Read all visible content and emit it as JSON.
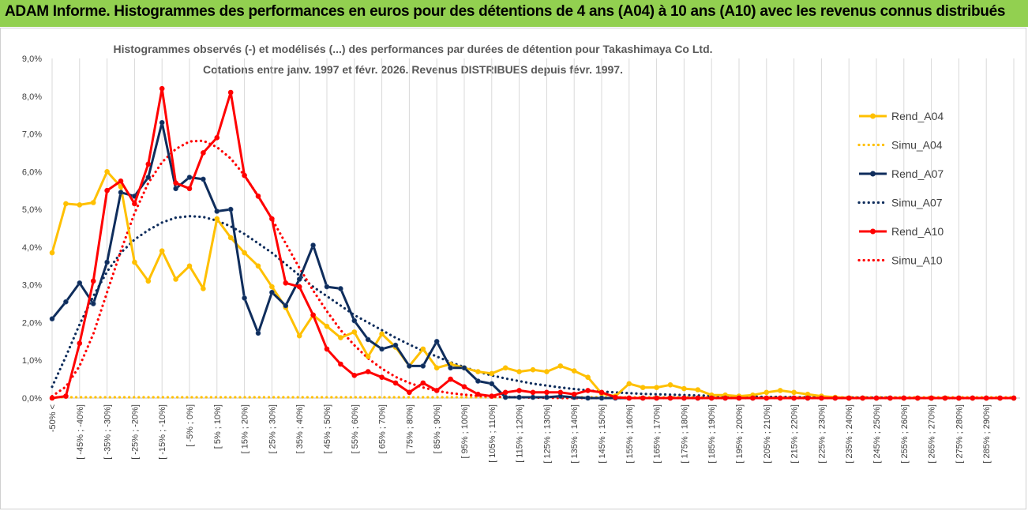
{
  "header": {
    "title": "ADAM Informe. Histogrammes des performances en euros pour des détentions de 4 ans (A04) à 10 ans (A10) avec les revenus connus distribués"
  },
  "chart_data": {
    "type": "line",
    "title": "Histogrammes observés (-) et modélisés (...) des performances par durées de détention pour Takashimaya Co Ltd.",
    "subtitle": "Cotations entre janv. 1997 et févr. 2026. Revenus DISTRIBUES depuis févr. 1997.",
    "xlabel": "",
    "ylabel": "",
    "ylim": [
      0,
      9
    ],
    "yticks": [
      "0,0%",
      "1,0%",
      "2,0%",
      "3,0%",
      "4,0%",
      "5,0%",
      "6,0%",
      "7,0%",
      "8,0%",
      "9,0%"
    ],
    "grid": "vertical",
    "legend_position": "right",
    "categories": [
      "-50% <",
      "] -50% ; -45%]",
      "[ -45% ; -40%]",
      "] -40% ; -35%]",
      "[ -35% ; -30%]",
      "] -30% ; -25%]",
      "[ -25% ; -20%]",
      "] -20% ; -15%]",
      "[ -15% ; -10%]",
      "] -10% ; -5%]",
      "[ -5% ; 0%]",
      "] 0% ; 5%]",
      "[ 5% ; 10%]",
      "] 10% ; 15%]",
      "[ 15% ; 20%]",
      "] 20% ; 25%]",
      "[ 25% ; 30%]",
      "] 30% ; 35%]",
      "[ 35% ; 40%]",
      "] 40% ; 45%]",
      "[ 45% ; 50%]",
      "] 50% ; 55%]",
      "[ 55% ; 60%]",
      "] 60% ; 65%]",
      "[ 65% ; 70%]",
      "] 70% ; 75%]",
      "[ 75% ; 80%]",
      "] 80% ; 85%]",
      "[ 85% ; 90%]",
      "] 90% ; 95%]",
      "[ 95% ; 100%]",
      "] 100% ; 105%]",
      "[ 105% ; 110%]",
      "] 110% ; 115%]",
      "[ 115% ; 120%]",
      "] 120% ; 125%]",
      "[ 125% ; 130%]",
      "] 130% ; 135%]",
      "[ 135% ; 140%]",
      "] 140% ; 145%]",
      "[ 145% ; 150%]",
      "] 150% ; 155%]",
      "[ 155% ; 160%]",
      "] 160% ; 165%]",
      "[ 165% ; 170%]",
      "] 170% ; 175%]",
      "[ 175% ; 180%]",
      "] 180% ; 185%]",
      "[ 185% ; 190%]",
      "] 190% ; 195%]",
      "[ 195% ; 200%]",
      "] 200% ; 205%]",
      "[ 205% ; 210%]",
      "] 210% ; 215%]",
      "[ 215% ; 220%]",
      "] 220% ; 225%]",
      "[ 225% ; 230%]",
      "] 230% ; 235%]",
      "[ 235% ; 240%]",
      "] 240% ; 245%]",
      "[ 245% ; 250%]",
      "] 250% ; 255%]",
      "[ 255% ; 260%]",
      "] 260% ; 265%]",
      "[ 265% ; 270%]",
      "] 270% ; 275%]",
      "[ 275% ; 280%]",
      "] 280% ; 285%]",
      "[ 285% ; 290%]",
      "] 290% ; 295%]",
      "[ 295% ; 300%]"
    ],
    "visible_tick_labels": [
      "-50% <",
      "[ -45% ; -40%]",
      "[ -35% ; -30%]",
      "[ -25% ; -20%]",
      "[ -15% ; -10%]",
      "[ -5% ; 0%]",
      "[ 5% ; 10%]",
      "[ 15% ; 20%]",
      "[ 25% ; 30%]",
      "[ 35% ; 40%]",
      "[ 45% ; 50%]",
      "[ 55% ; 60%]",
      "[ 65% ; 70%]",
      "[ 75% ; 80%]",
      "[ 85% ; 90%]",
      "[ 95% ; 100%]",
      "[ 105% ; 110%]",
      "[ 115% ; 120%]",
      "[ 125% ; 130%]",
      "[ 135% ; 140%]",
      "[ 145% ; 150%]",
      "[ 155% ; 160%]",
      "[ 165% ; 170%]",
      "[ 175% ; 180%]",
      "[ 185% ; 190%]",
      "[ 195% ; 200%]",
      "[ 205% ; 210%]",
      "[ 215% ; 220%]",
      "[ 225% ; 230%]",
      "[ 235% ; 240%]",
      "[ 245% ; 250%]",
      "[ 255% ; 260%]",
      "[ 265% ; 270%]",
      "[ 275% ; 280%]",
      "[ 285% ; 290%]"
    ],
    "series": [
      {
        "name": "Rend_A04",
        "style": "solid",
        "color": "#ffc000",
        "values": [
          3.85,
          5.15,
          5.12,
          5.18,
          6.0,
          5.6,
          3.6,
          3.1,
          3.9,
          3.15,
          3.5,
          2.9,
          4.75,
          4.25,
          3.85,
          3.5,
          2.95,
          2.4,
          1.65,
          2.2,
          1.9,
          1.6,
          1.75,
          1.1,
          1.7,
          1.35,
          0.85,
          1.3,
          0.8,
          0.9,
          0.8,
          0.7,
          0.65,
          0.8,
          0.7,
          0.75,
          0.7,
          0.85,
          0.72,
          0.55,
          0.12,
          0.05,
          0.38,
          0.28,
          0.28,
          0.35,
          0.25,
          0.22,
          0.08,
          0.08,
          0.05,
          0.08,
          0.15,
          0.2,
          0.15,
          0.1,
          0.05,
          0.02,
          0.0,
          0.0,
          0.0,
          0.0,
          0.0,
          0.0,
          0.0,
          0.0,
          0.0,
          0.0,
          0.0,
          0.0,
          0.0
        ]
      },
      {
        "name": "Simu_A04",
        "style": "dotted",
        "color": "#ffc000",
        "values": [
          0.02,
          0.02,
          0.02,
          0.02,
          0.02,
          0.02,
          0.02,
          0.02,
          0.02,
          0.02,
          0.02,
          0.02,
          0.02,
          0.02,
          0.02,
          0.02,
          0.02,
          0.02,
          0.02,
          0.02,
          0.02,
          0.02,
          0.02,
          0.02,
          0.02,
          0.02,
          0.02,
          0.02,
          0.02,
          0.02,
          0.02,
          0.02,
          0.02,
          0.02,
          0.02,
          0.02,
          0.02,
          0.02,
          0.02,
          0.02,
          0.02,
          0.02,
          0.02,
          0.02,
          0.02,
          0.02,
          0.02,
          0.02,
          0.02,
          0.02,
          0.02,
          0.02,
          0.02,
          0.02,
          0.02,
          0.02,
          0.02,
          0.02,
          0.02,
          0.02,
          0.02,
          0.02,
          0.02,
          0.02,
          0.02,
          0.02,
          0.02,
          0.02,
          0.02,
          0.02,
          0.02
        ]
      },
      {
        "name": "Rend_A07",
        "style": "solid",
        "color": "#0f2d5c",
        "values": [
          2.1,
          2.55,
          3.05,
          2.5,
          3.6,
          5.45,
          5.35,
          5.85,
          7.3,
          5.55,
          5.85,
          5.8,
          4.95,
          5.0,
          2.65,
          1.72,
          2.8,
          2.45,
          3.15,
          4.05,
          2.95,
          2.9,
          2.05,
          1.55,
          1.3,
          1.4,
          0.85,
          0.85,
          1.5,
          0.8,
          0.8,
          0.45,
          0.38,
          0.02,
          0.02,
          0.02,
          0.02,
          0.05,
          0.02,
          0.0,
          0.0,
          0.0,
          0.0,
          0.0,
          0.0,
          0.0,
          0.0,
          0.0,
          0.0,
          0.0,
          0.0,
          0.0,
          0.0,
          0.0,
          0.0,
          0.0,
          0.0,
          0.0,
          0.0,
          0.0,
          0.0,
          0.0,
          0.0,
          0.0,
          0.0,
          0.0,
          0.0,
          0.0,
          0.0,
          0.0,
          0.0
        ]
      },
      {
        "name": "Simu_A07",
        "style": "dotted",
        "color": "#0f2d5c",
        "values": [
          0.3,
          1.1,
          1.95,
          2.7,
          3.35,
          3.85,
          4.2,
          4.45,
          4.65,
          4.78,
          4.82,
          4.8,
          4.7,
          4.55,
          4.35,
          4.1,
          3.85,
          3.55,
          3.25,
          2.95,
          2.7,
          2.45,
          2.2,
          2.0,
          1.8,
          1.6,
          1.42,
          1.25,
          1.1,
          0.95,
          0.82,
          0.7,
          0.6,
          0.52,
          0.45,
          0.38,
          0.33,
          0.28,
          0.24,
          0.2,
          0.17,
          0.15,
          0.13,
          0.11,
          0.1,
          0.09,
          0.08,
          0.07,
          0.06,
          0.05,
          0.04,
          0.04,
          0.03,
          0.03,
          0.02,
          0.02,
          0.02,
          0.01,
          0.01,
          0.01,
          0.01,
          0.01,
          0.0,
          0.0,
          0.0,
          0.0,
          0.0,
          0.0,
          0.0,
          0.0,
          0.0
        ]
      },
      {
        "name": "Rend_A10",
        "style": "solid",
        "color": "#ff0000",
        "values": [
          0.0,
          0.05,
          1.45,
          3.1,
          5.5,
          5.75,
          5.15,
          6.2,
          8.2,
          5.7,
          5.55,
          6.5,
          6.9,
          8.1,
          5.9,
          5.35,
          4.75,
          3.05,
          2.95,
          2.2,
          1.3,
          0.9,
          0.6,
          0.7,
          0.55,
          0.4,
          0.15,
          0.4,
          0.2,
          0.5,
          0.3,
          0.1,
          0.05,
          0.15,
          0.2,
          0.15,
          0.15,
          0.15,
          0.1,
          0.2,
          0.15,
          0.02,
          0.0,
          0.0,
          0.0,
          0.0,
          0.0,
          0.0,
          0.0,
          0.0,
          0.0,
          0.0,
          0.0,
          0.0,
          0.0,
          0.0,
          0.0,
          0.0,
          0.0,
          0.0,
          0.0,
          0.0,
          0.0,
          0.0,
          0.0,
          0.0,
          0.0,
          0.0,
          0.0,
          0.0,
          0.0
        ]
      },
      {
        "name": "Simu_A10",
        "style": "dotted",
        "color": "#ff0000",
        "values": [
          0.05,
          0.3,
          0.85,
          1.7,
          2.8,
          3.9,
          4.9,
          5.7,
          6.25,
          6.6,
          6.8,
          6.82,
          6.65,
          6.35,
          5.9,
          5.35,
          4.75,
          4.1,
          3.45,
          2.85,
          2.3,
          1.8,
          1.4,
          1.05,
          0.78,
          0.56,
          0.4,
          0.28,
          0.19,
          0.13,
          0.09,
          0.06,
          0.04,
          0.03,
          0.02,
          0.01,
          0.01,
          0.0,
          0.0,
          0.0,
          0.0,
          0.0,
          0.0,
          0.0,
          0.0,
          0.0,
          0.0,
          0.0,
          0.0,
          0.0,
          0.0,
          0.0,
          0.0,
          0.0,
          0.0,
          0.0,
          0.0,
          0.0,
          0.0,
          0.0,
          0.0,
          0.0,
          0.0,
          0.0,
          0.0,
          0.0,
          0.0,
          0.0,
          0.0,
          0.0,
          0.0
        ]
      }
    ]
  }
}
